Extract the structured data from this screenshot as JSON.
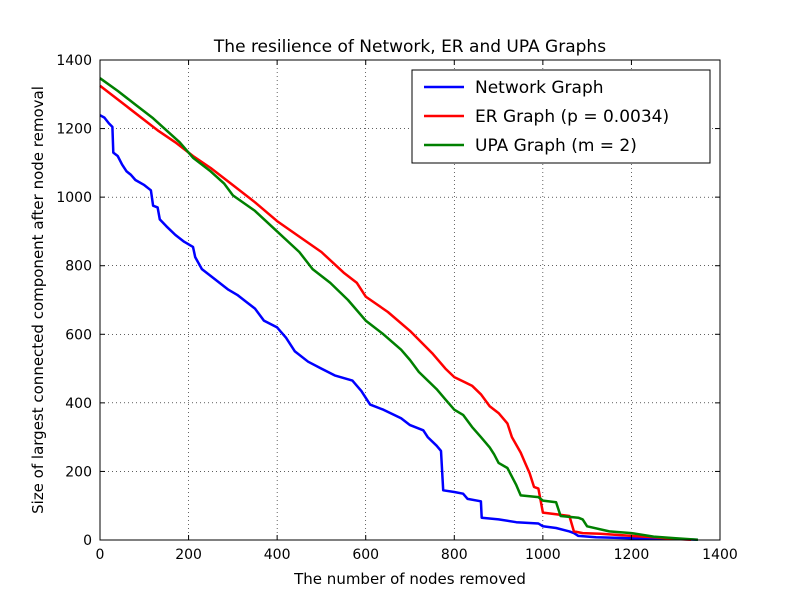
{
  "chart_data": {
    "type": "line",
    "title": "The resilience of Network, ER and UPA Graphs",
    "xlabel": "The number of nodes removed",
    "ylabel": "Size of largest connected component after node removal",
    "xlim": [
      0,
      1400
    ],
    "ylim": [
      0,
      1400
    ],
    "xticks": [
      0,
      200,
      400,
      600,
      800,
      1000,
      1200,
      1400
    ],
    "yticks": [
      0,
      200,
      400,
      600,
      800,
      1000,
      1200,
      1400
    ],
    "grid": true,
    "legend": "top-right",
    "series": [
      {
        "name": "Network Graph",
        "color": "#0000ff",
        "points": [
          [
            0,
            1239
          ],
          [
            10,
            1232
          ],
          [
            20,
            1215
          ],
          [
            28,
            1205
          ],
          [
            30,
            1130
          ],
          [
            40,
            1120
          ],
          [
            50,
            1095
          ],
          [
            60,
            1075
          ],
          [
            70,
            1065
          ],
          [
            80,
            1050
          ],
          [
            100,
            1035
          ],
          [
            115,
            1020
          ],
          [
            120,
            975
          ],
          [
            130,
            970
          ],
          [
            135,
            935
          ],
          [
            150,
            915
          ],
          [
            170,
            890
          ],
          [
            190,
            870
          ],
          [
            210,
            855
          ],
          [
            215,
            825
          ],
          [
            230,
            790
          ],
          [
            260,
            760
          ],
          [
            290,
            730
          ],
          [
            310,
            715
          ],
          [
            330,
            695
          ],
          [
            350,
            675
          ],
          [
            370,
            640
          ],
          [
            400,
            620
          ],
          [
            420,
            590
          ],
          [
            440,
            550
          ],
          [
            470,
            520
          ],
          [
            500,
            500
          ],
          [
            530,
            480
          ],
          [
            570,
            465
          ],
          [
            590,
            435
          ],
          [
            610,
            395
          ],
          [
            640,
            380
          ],
          [
            680,
            355
          ],
          [
            700,
            335
          ],
          [
            730,
            320
          ],
          [
            740,
            300
          ],
          [
            760,
            275
          ],
          [
            770,
            260
          ],
          [
            775,
            145
          ],
          [
            800,
            140
          ],
          [
            820,
            135
          ],
          [
            830,
            120
          ],
          [
            860,
            113
          ],
          [
            862,
            65
          ],
          [
            900,
            60
          ],
          [
            940,
            52
          ],
          [
            990,
            48
          ],
          [
            1000,
            40
          ],
          [
            1030,
            35
          ],
          [
            1060,
            25
          ],
          [
            1070,
            20
          ],
          [
            1080,
            12
          ],
          [
            1120,
            8
          ],
          [
            1200,
            5
          ],
          [
            1300,
            3
          ],
          [
            1350,
            1
          ]
        ]
      },
      {
        "name": "ER Graph (p = 0.0034)",
        "color": "#ff0000",
        "points": [
          [
            0,
            1325
          ],
          [
            30,
            1295
          ],
          [
            60,
            1265
          ],
          [
            100,
            1225
          ],
          [
            130,
            1195
          ],
          [
            170,
            1160
          ],
          [
            210,
            1120
          ],
          [
            250,
            1085
          ],
          [
            300,
            1035
          ],
          [
            350,
            985
          ],
          [
            400,
            930
          ],
          [
            450,
            885
          ],
          [
            500,
            840
          ],
          [
            550,
            780
          ],
          [
            580,
            750
          ],
          [
            600,
            710
          ],
          [
            650,
            665
          ],
          [
            700,
            610
          ],
          [
            750,
            545
          ],
          [
            780,
            500
          ],
          [
            800,
            475
          ],
          [
            840,
            450
          ],
          [
            860,
            425
          ],
          [
            880,
            390
          ],
          [
            900,
            370
          ],
          [
            920,
            340
          ],
          [
            930,
            300
          ],
          [
            950,
            255
          ],
          [
            960,
            225
          ],
          [
            970,
            195
          ],
          [
            980,
            155
          ],
          [
            990,
            150
          ],
          [
            1000,
            80
          ],
          [
            1030,
            75
          ],
          [
            1060,
            70
          ],
          [
            1070,
            25
          ],
          [
            1090,
            20
          ],
          [
            1130,
            18
          ],
          [
            1200,
            12
          ],
          [
            1250,
            8
          ],
          [
            1300,
            3
          ],
          [
            1335,
            1
          ]
        ]
      },
      {
        "name": "UPA Graph (m = 2)",
        "color": "#008000",
        "points": [
          [
            0,
            1347
          ],
          [
            40,
            1310
          ],
          [
            80,
            1270
          ],
          [
            120,
            1230
          ],
          [
            150,
            1195
          ],
          [
            180,
            1160
          ],
          [
            210,
            1115
          ],
          [
            250,
            1075
          ],
          [
            280,
            1040
          ],
          [
            300,
            1005
          ],
          [
            350,
            960
          ],
          [
            400,
            900
          ],
          [
            450,
            840
          ],
          [
            480,
            790
          ],
          [
            520,
            750
          ],
          [
            560,
            700
          ],
          [
            600,
            640
          ],
          [
            640,
            600
          ],
          [
            680,
            555
          ],
          [
            700,
            525
          ],
          [
            720,
            490
          ],
          [
            760,
            440
          ],
          [
            780,
            410
          ],
          [
            800,
            380
          ],
          [
            820,
            365
          ],
          [
            840,
            330
          ],
          [
            860,
            300
          ],
          [
            880,
            270
          ],
          [
            890,
            250
          ],
          [
            900,
            225
          ],
          [
            920,
            210
          ],
          [
            940,
            160
          ],
          [
            950,
            130
          ],
          [
            990,
            125
          ],
          [
            1000,
            115
          ],
          [
            1030,
            110
          ],
          [
            1040,
            70
          ],
          [
            1080,
            65
          ],
          [
            1090,
            60
          ],
          [
            1100,
            40
          ],
          [
            1150,
            25
          ],
          [
            1200,
            20
          ],
          [
            1250,
            10
          ],
          [
            1300,
            5
          ],
          [
            1350,
            1
          ]
        ]
      }
    ]
  }
}
